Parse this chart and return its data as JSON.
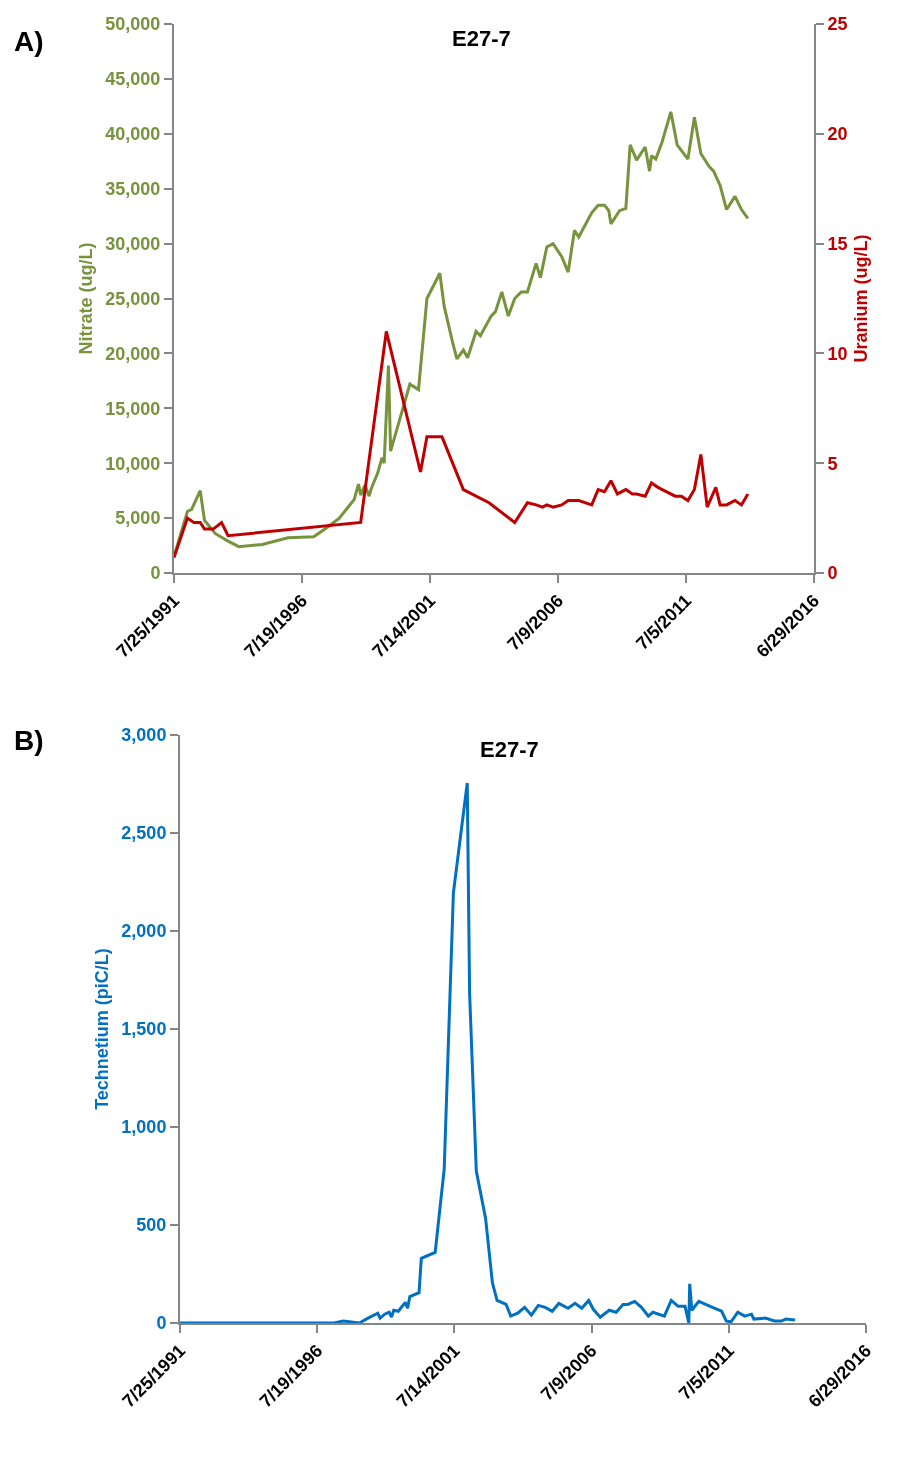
{
  "chart_data": [
    {
      "type": "line",
      "title": "E27-7",
      "ylabel": "Nitrate (ug/L)",
      "y2label": "Uranium (ug/L)",
      "annotations": [
        "A)"
      ],
      "xlim": [
        "1991-07-25",
        "2016-06-29"
      ],
      "xticks": [
        {
          "value": "1991-07-25",
          "label": "7/25/1991"
        },
        {
          "value": "1996-07-19",
          "label": "7/19/1996"
        },
        {
          "value": "2001-07-14",
          "label": "7/14/2001"
        },
        {
          "value": "2006-07-09",
          "label": "7/9/2006"
        },
        {
          "value": "2011-07-05",
          "label": "7/5/2011"
        },
        {
          "value": "2016-06-29",
          "label": "6/29/2016"
        }
      ],
      "ylim": [
        0,
        50000
      ],
      "yticks": [
        {
          "value": 0,
          "label": "0"
        },
        {
          "value": 5000,
          "label": "5,000"
        },
        {
          "value": 10000,
          "label": "10,000"
        },
        {
          "value": 15000,
          "label": "15,000"
        },
        {
          "value": 20000,
          "label": "20,000"
        },
        {
          "value": 25000,
          "label": "25,000"
        },
        {
          "value": 30000,
          "label": "30,000"
        },
        {
          "value": 35000,
          "label": "35,000"
        },
        {
          "value": 40000,
          "label": "40,000"
        },
        {
          "value": 45000,
          "label": "45,000"
        },
        {
          "value": 50000,
          "label": "50,000"
        }
      ],
      "y2lim": [
        0,
        25
      ],
      "y2ticks": [
        {
          "value": 0,
          "label": "0"
        },
        5,
        10,
        15,
        20,
        25
      ],
      "series": [
        {
          "color": "#77933c",
          "x": [
            "1991-07-25",
            "1992-02",
            "1992-04",
            "1992-08",
            "1992-10",
            "1993-03",
            "1993-09",
            "1994-02",
            "1995-01",
            "1996-01",
            "1997-01",
            "1997-07",
            "1998-01",
            "1998-08",
            "1998-10",
            "1998-11",
            "1999-01",
            "1999-03",
            "1999-04",
            "1999-07",
            "1999-09",
            "1999-10",
            "1999-12",
            "2000-01",
            "2000-10",
            "2001-02",
            "2001-06",
            "2001-12",
            "2002-02",
            "2002-06",
            "2002-08",
            "2002-11",
            "2003-01",
            "2003-05",
            "2003-07",
            "2003-12",
            "2004-02",
            "2004-05",
            "2004-08",
            "2004-11",
            "2005-02",
            "2005-05",
            "2005-09",
            "2005-11",
            "2006-02",
            "2006-05",
            "2006-09",
            "2006-12",
            "2007-03",
            "2007-05",
            "2007-11",
            "2008-02",
            "2008-05",
            "2008-07",
            "2008-08",
            "2008-12",
            "2009-03",
            "2009-05",
            "2009-08",
            "2009-12",
            "2010-02",
            "2010-03",
            "2010-05",
            "2010-08",
            "2010-12",
            "2011-03",
            "2011-08",
            "2011-11",
            "2012-02",
            "2012-06",
            "2012-08",
            "2012-11",
            "2013-02",
            "2013-06",
            "2013-09",
            "2013-12"
          ],
          "values": [
            1500,
            5600,
            5800,
            7500,
            4800,
            3600,
            2900,
            2400,
            2600,
            3200,
            3300,
            4100,
            5000,
            6700,
            8100,
            7100,
            8000,
            7000,
            7700,
            9100,
            10500,
            10000,
            18900,
            11100,
            17200,
            16700,
            25000,
            27300,
            24300,
            21000,
            19500,
            20300,
            19600,
            22000,
            21600,
            23400,
            23800,
            25600,
            23400,
            25000,
            25600,
            25600,
            28200,
            26900,
            29700,
            30000,
            28800,
            27400,
            31200,
            30600,
            32800,
            33500,
            33500,
            33000,
            31800,
            33000,
            33200,
            39000,
            37600,
            38800,
            36600,
            38000,
            37700,
            39300,
            42000,
            39000,
            37700,
            41500,
            38200,
            37000,
            36600,
            35300,
            33100,
            34300,
            33100,
            32300
          ]
        },
        {
          "color": "#c00000",
          "axis": "y2",
          "x": [
            "1991-07-25",
            "1992-02",
            "1992-05",
            "1992-08",
            "1992-10",
            "1993-02",
            "1993-06",
            "1993-09",
            "1998-11",
            "1999-11",
            "2001-03",
            "2001-06",
            "2002-01",
            "2002-11",
            "2003-11",
            "2004-11",
            "2005-05",
            "2005-09",
            "2005-12",
            "2006-02",
            "2006-05",
            "2006-09",
            "2006-12",
            "2007-05",
            "2007-11",
            "2008-02",
            "2008-05",
            "2008-08",
            "2008-11",
            "2009-03",
            "2009-06",
            "2009-08",
            "2009-12",
            "2010-03",
            "2010-06",
            "2010-08",
            "2011-02",
            "2011-05",
            "2011-08",
            "2011-11",
            "2012-02",
            "2012-05",
            "2012-09",
            "2012-11",
            "2013-02",
            "2013-06",
            "2013-09",
            "2013-12"
          ],
          "values": [
            0.7,
            2.5,
            2.3,
            2.3,
            2.0,
            2.0,
            2.3,
            1.7,
            2.3,
            11.0,
            4.6,
            6.2,
            6.2,
            3.8,
            3.2,
            2.3,
            3.2,
            3.1,
            3.0,
            3.1,
            3.0,
            3.1,
            3.3,
            3.3,
            3.1,
            3.8,
            3.7,
            4.2,
            3.6,
            3.8,
            3.6,
            3.6,
            3.5,
            4.1,
            3.9,
            3.8,
            3.5,
            3.5,
            3.3,
            3.8,
            5.4,
            3.0,
            3.9,
            3.1,
            3.1,
            3.3,
            3.1,
            3.6
          ]
        }
      ]
    },
    {
      "type": "line",
      "title": "E27-7",
      "ylabel": "Technetium (piC/L)",
      "annotations": [
        "B)"
      ],
      "xlim": [
        "1991-07-25",
        "2016-06-29"
      ],
      "xticks": [
        {
          "value": "1991-07-25",
          "label": "7/25/1991"
        },
        {
          "value": "1996-07-19",
          "label": "7/19/1996"
        },
        {
          "value": "2001-07-14",
          "label": "7/14/2001"
        },
        {
          "value": "2006-07-09",
          "label": "7/9/2006"
        },
        {
          "value": "2011-07-05",
          "label": "7/5/2011"
        },
        {
          "value": "2016-06-29",
          "label": "6/29/2016"
        }
      ],
      "ylim": [
        0,
        3000
      ],
      "yticks": [
        {
          "value": 0,
          "label": "0"
        },
        500,
        {
          "value": 1000,
          "label": "1,000"
        },
        {
          "value": 1500,
          "label": "1,500"
        },
        {
          "value": 2000,
          "label": "2,000"
        },
        {
          "value": 2500,
          "label": "2,500"
        },
        {
          "value": 3000,
          "label": "3,000"
        }
      ],
      "series": [
        {
          "color": "#0070c0",
          "x": [
            "1991-07-25",
            "1997-03",
            "1997-07",
            "1998-02",
            "1998-05",
            "1998-10",
            "1998-11",
            "1999-01",
            "1999-03",
            "1999-04",
            "1999-05",
            "1999-07",
            "1999-10",
            "1999-11",
            "1999-12",
            "2000-04",
            "2000-05",
            "2000-11",
            "2001-03",
            "2001-07",
            "2002-01",
            "2002-02",
            "2002-05",
            "2002-09",
            "2002-12",
            "2003-02",
            "2003-06",
            "2003-08",
            "2003-11",
            "2004-02",
            "2004-05",
            "2004-08",
            "2004-11",
            "2005-02",
            "2005-05",
            "2005-09",
            "2005-12",
            "2006-03",
            "2006-06",
            "2006-08",
            "2006-11",
            "2007-03",
            "2007-06",
            "2007-09",
            "2007-11",
            "2008-02",
            "2008-05",
            "2008-08",
            "2008-10",
            "2009-03",
            "2009-06",
            "2009-09",
            "2009-12",
            "2010-01-20",
            "2010-02-01",
            "2010-03",
            "2010-06",
            "2010-10",
            "2011-01",
            "2011-04",
            "2011-06",
            "2011-08",
            "2011-11",
            "2012-02",
            "2012-05",
            "2012-06",
            "2012-11",
            "2013-03",
            "2013-06",
            "2013-08",
            "2013-12"
          ],
          "values": [
            0,
            0,
            10,
            0,
            20,
            50,
            25,
            45,
            55,
            30,
            65,
            60,
            105,
            75,
            135,
            155,
            330,
            360,
            785,
            2195,
            2755,
            1685,
            775,
            535,
            205,
            115,
            95,
            35,
            50,
            80,
            40,
            90,
            80,
            60,
            100,
            75,
            100,
            75,
            115,
            70,
            30,
            65,
            55,
            95,
            95,
            110,
            80,
            35,
            55,
            35,
            115,
            85,
            85,
            0,
            200,
            65,
            110,
            90,
            75,
            60,
            10,
            5,
            55,
            35,
            45,
            20,
            25,
            10,
            10,
            20,
            15
          ]
        }
      ]
    }
  ]
}
